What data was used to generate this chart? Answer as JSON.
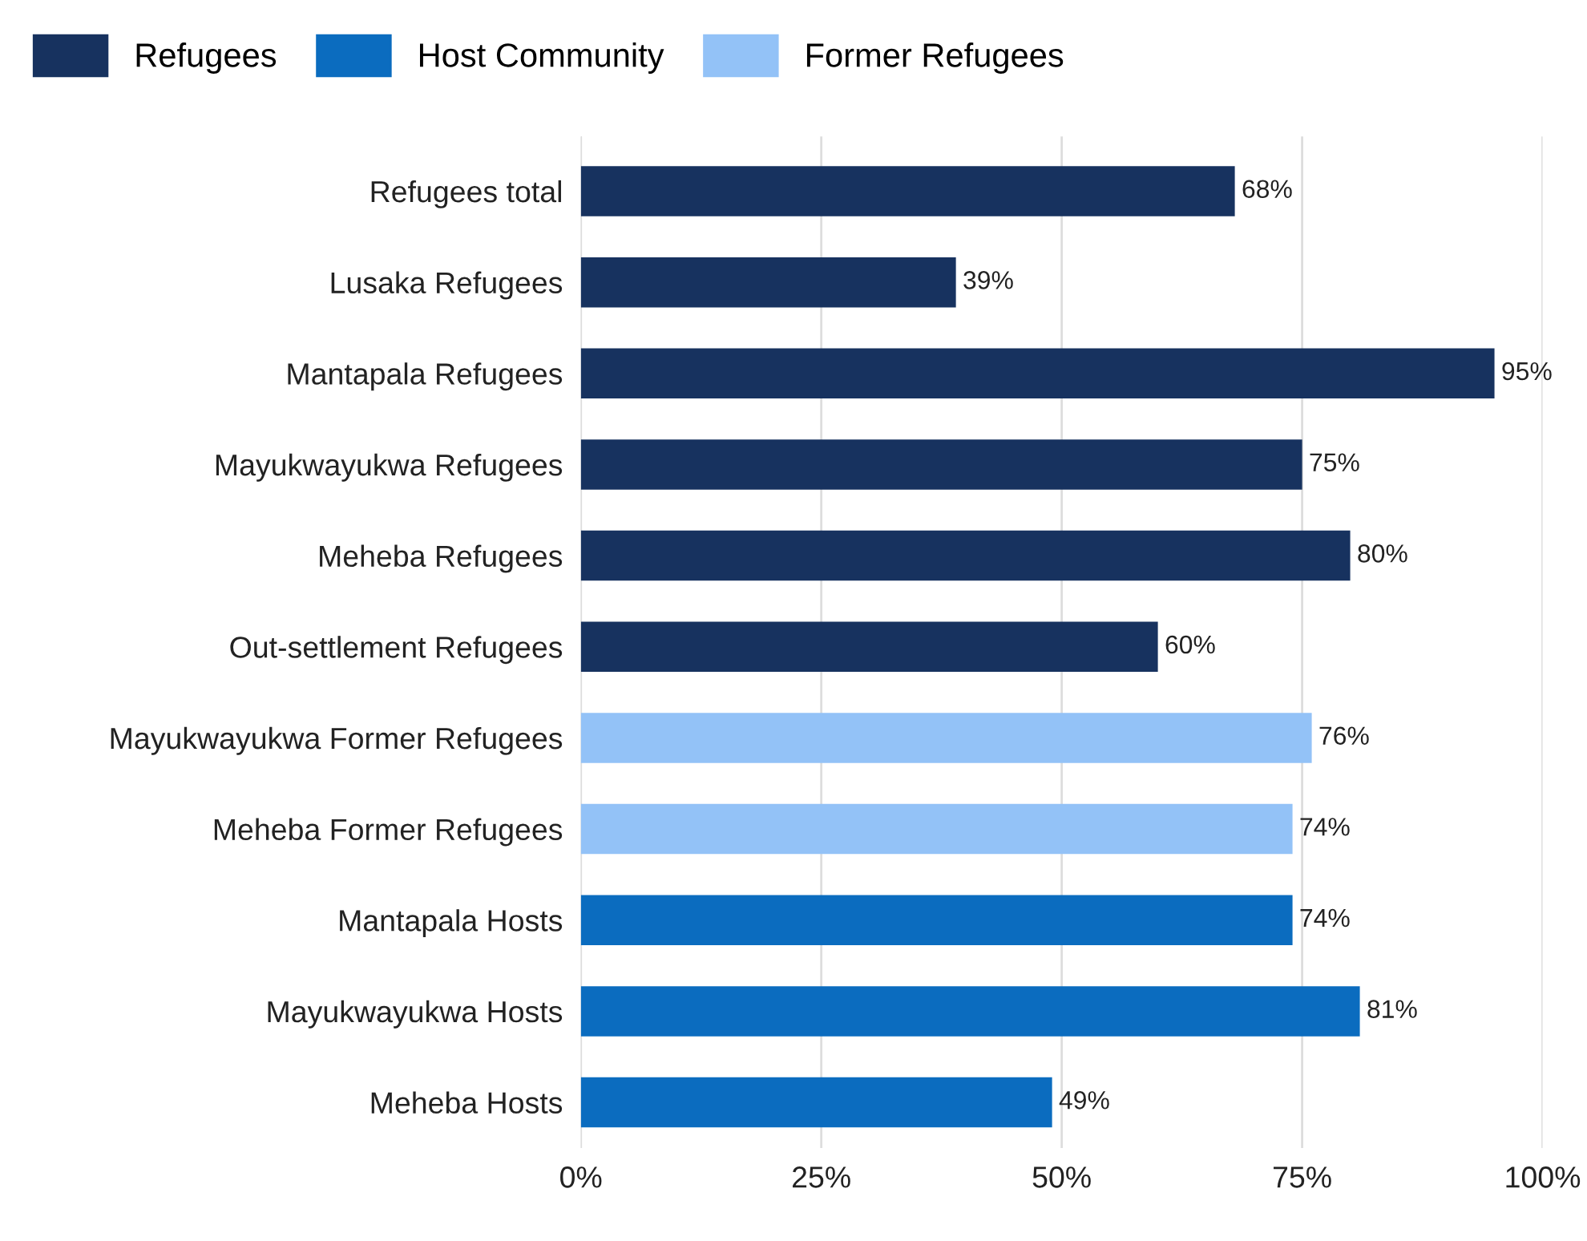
{
  "chart_data": {
    "type": "bar",
    "orientation": "horizontal",
    "categories": [
      "Refugees total",
      "Lusaka Refugees",
      "Mantapala Refugees",
      "Mayukwayukwa Refugees",
      "Meheba Refugees",
      "Out-settlement Refugees",
      "Mayukwayukwa Former Refugees",
      "Meheba Former Refugees",
      "Mantapala Hosts",
      "Mayukwayukwa Hosts",
      "Meheba Hosts"
    ],
    "series": [
      {
        "name": "Refugees",
        "color": "#17325f",
        "values": [
          68,
          39,
          95,
          75,
          80,
          60,
          null,
          null,
          null,
          null,
          null
        ],
        "value_labels": [
          "68%",
          "39%",
          "95%",
          "75%",
          "80%",
          "60%",
          null,
          null,
          null,
          null,
          null
        ]
      },
      {
        "name": "Host Community",
        "color": "#0b6cbf",
        "values": [
          null,
          null,
          null,
          null,
          null,
          null,
          null,
          null,
          74,
          81,
          49
        ],
        "value_labels": [
          null,
          null,
          null,
          null,
          null,
          null,
          null,
          null,
          "74%",
          "81%",
          "49%"
        ]
      },
      {
        "name": "Former Refugees",
        "color": "#93c2f7",
        "values": [
          null,
          null,
          null,
          null,
          null,
          null,
          76,
          74,
          null,
          null,
          null
        ],
        "value_labels": [
          null,
          null,
          null,
          null,
          null,
          null,
          "76%",
          "74%",
          null,
          null,
          null
        ]
      }
    ],
    "xlim": [
      0,
      100
    ],
    "xticks": [
      {
        "value": 0,
        "label": "0%"
      },
      {
        "value": 25,
        "label": "25%"
      },
      {
        "value": 50,
        "label": "50%"
      },
      {
        "value": 75,
        "label": "75%"
      },
      {
        "value": 100,
        "label": "100%"
      }
    ],
    "grid": "x",
    "legend": "top left"
  }
}
